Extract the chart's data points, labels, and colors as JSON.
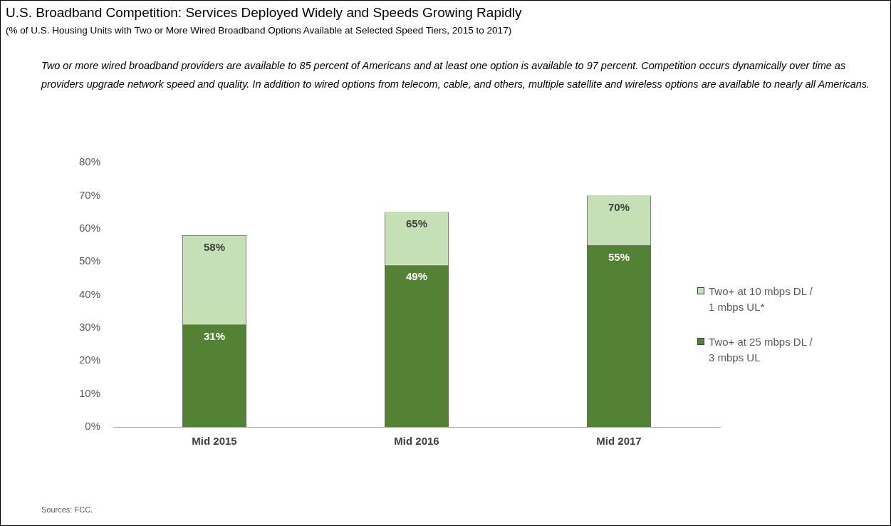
{
  "chart_data": {
    "type": "bar",
    "title": "U.S. Broadband Competition: Services Deployed Widely and Speeds Growing Rapidly",
    "subtitle": "(% of U.S. Housing Units with Two or More Wired Broadband Options Available at Selected Speed Tiers, 2015 to 2017)",
    "annotations": [
      "Two or more wired broadband providers are available to 85 percent of Americans and at least one option is available to 97 percent. Competition occurs dynamically over time as providers upgrade network speed and quality. In addition to wired options from telecom, cable, and others, multiple satellite and wireless options are available to nearly all Americans.",
      "Sources: FCC."
    ],
    "categories": [
      "Mid 2015",
      "Mid 2016",
      "Mid 2017"
    ],
    "stacked": true,
    "series": [
      {
        "name": "Two+ at 25 mbps DL / 3 mbps UL",
        "color": "#548235",
        "values": [
          31,
          49,
          55
        ],
        "value_labels": [
          "31%",
          "49%",
          "55%"
        ]
      },
      {
        "name": "Two+ at 10 mbps DL / 1 mbps UL*",
        "color": "#c5e0b4",
        "values": [
          27,
          16,
          15
        ]
      }
    ],
    "totals": [
      "58%",
      "65%",
      "70%"
    ],
    "ylim": [
      0,
      80
    ],
    "yticks": [
      {
        "value": 0,
        "label": "0%"
      },
      {
        "value": 10,
        "label": "10%"
      },
      {
        "value": 20,
        "label": "20%"
      },
      {
        "value": 30,
        "label": "30%"
      },
      {
        "value": 40,
        "label": "40%"
      },
      {
        "value": 50,
        "label": "50%"
      },
      {
        "value": 60,
        "label": "60%"
      },
      {
        "value": 70,
        "label": "70%"
      },
      {
        "value": 80,
        "label": "80%"
      }
    ],
    "grid": false,
    "legend": "right"
  }
}
